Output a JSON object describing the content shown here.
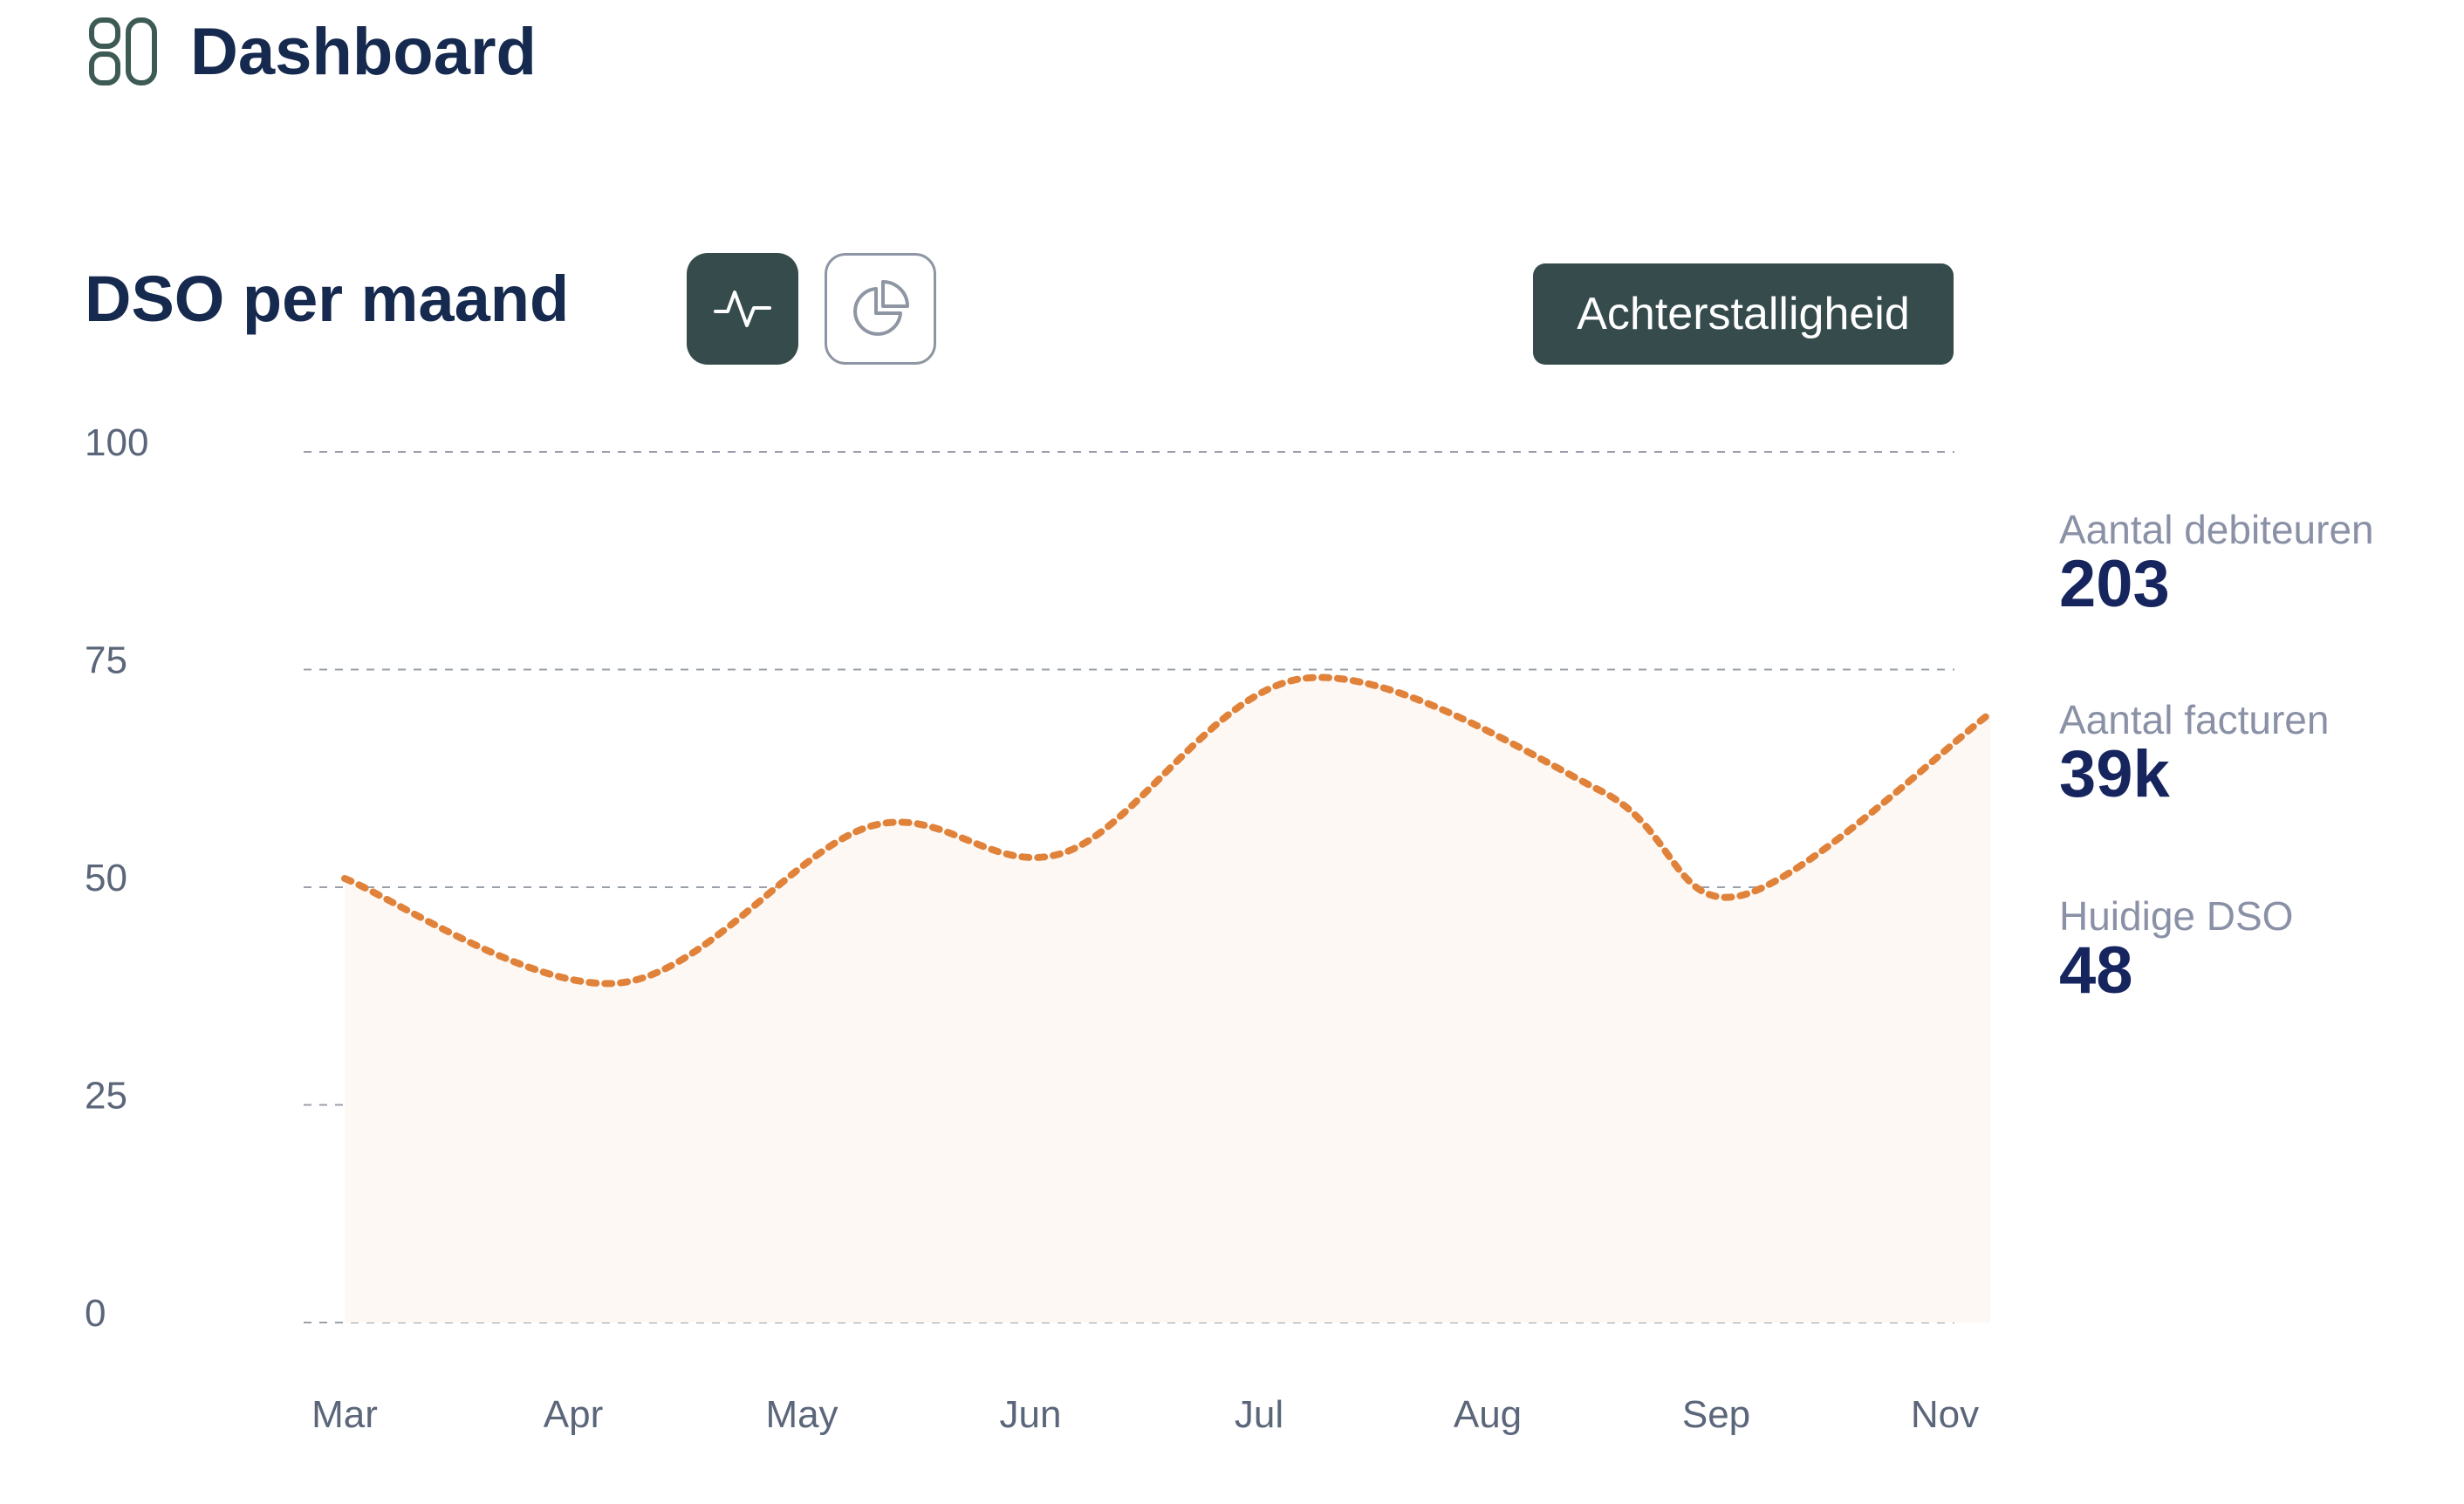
{
  "header": {
    "title": "Dashboard",
    "icon": "dashboard-icon"
  },
  "section": {
    "title": "DSO per maand",
    "toggle_line_icon": "line-chart-icon",
    "toggle_pie_icon": "pie-chart-icon",
    "filter_label": "Achterstalligheid"
  },
  "colors": {
    "accent": "#354b4c",
    "line": "#e0823a",
    "area": "#fdf8f4",
    "title": "#16294f"
  },
  "stats": [
    {
      "label": "Aantal debiteuren",
      "value": "203"
    },
    {
      "label": "Aantal facturen",
      "value": "39k"
    },
    {
      "label": "Huidige DSO",
      "value": "48"
    }
  ],
  "chart_data": {
    "type": "area",
    "title": "DSO per maand",
    "xlabel": "",
    "ylabel": "",
    "ylim": [
      0,
      100
    ],
    "yticks": [
      0,
      25,
      50,
      75,
      100
    ],
    "categories": [
      "Mar",
      "Apr",
      "May",
      "Jun",
      "Jul",
      "Aug",
      "Sep",
      "Nov"
    ],
    "series": [
      {
        "name": "DSO",
        "style": "dotted",
        "points": [
          {
            "x": 0.0,
            "y": 51
          },
          {
            "x": 1.2,
            "y": 39
          },
          {
            "x": 2.3,
            "y": 57
          },
          {
            "x": 3.15,
            "y": 54
          },
          {
            "x": 4.2,
            "y": 74
          },
          {
            "x": 5.5,
            "y": 61
          },
          {
            "x": 6.1,
            "y": 49
          },
          {
            "x": 7.2,
            "y": 70
          }
        ]
      }
    ],
    "grid": true,
    "gridStyle": "dashed"
  }
}
